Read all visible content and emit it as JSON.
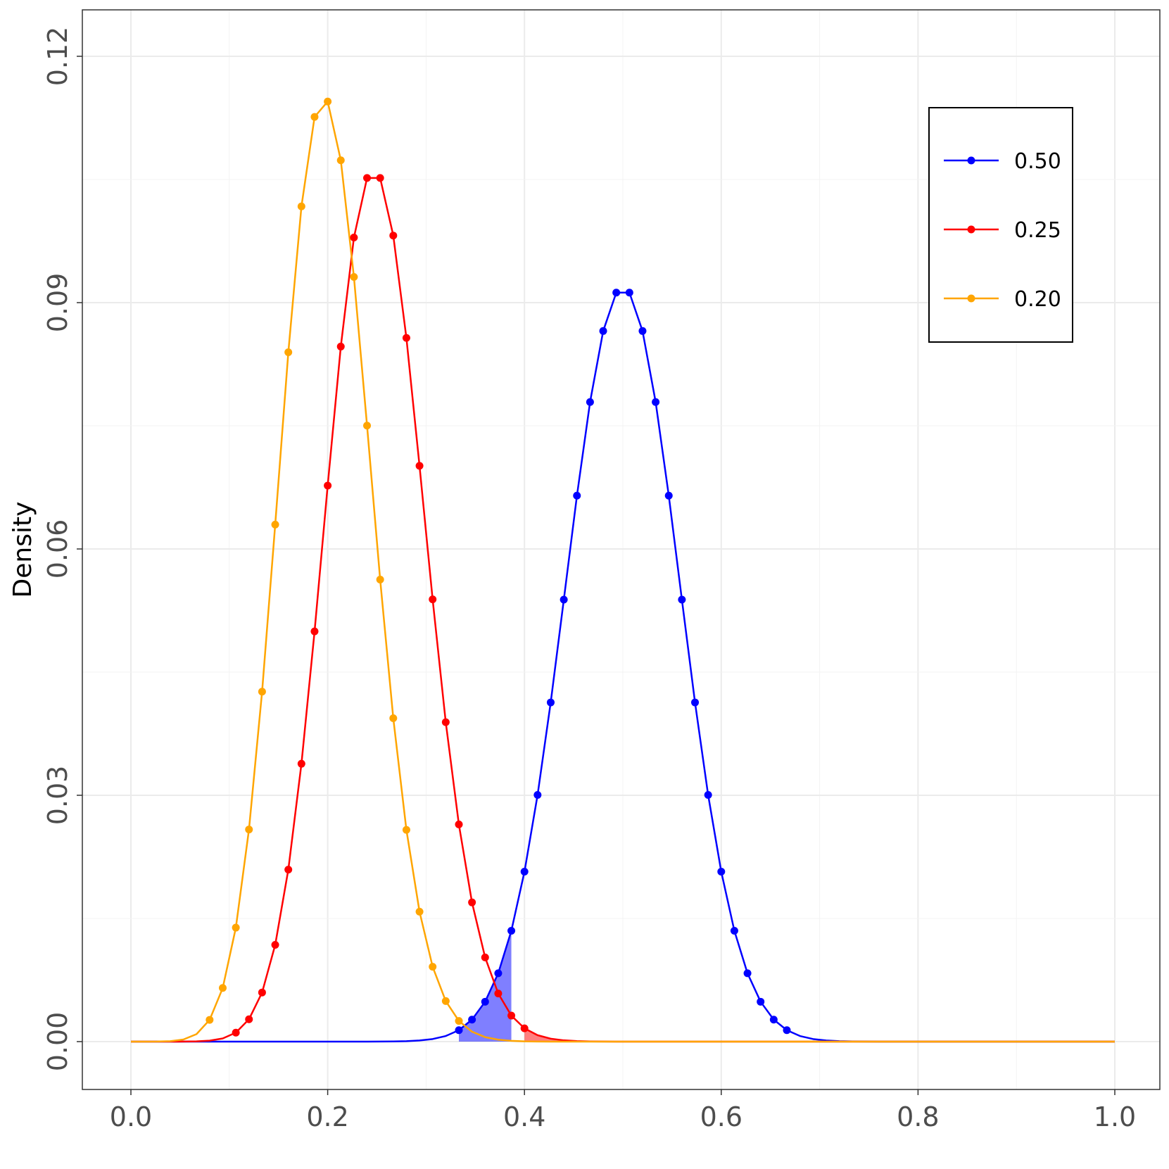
{
  "chart_data": {
    "type": "line",
    "title": "",
    "xlabel": "",
    "ylabel": "Density",
    "xlim": [
      0,
      1
    ],
    "ylim": [
      0,
      0.12
    ],
    "x_ticks": [
      0.0,
      0.2,
      0.4,
      0.6,
      0.8,
      1.0
    ],
    "x_tick_labels": [
      "0.0",
      "0.2",
      "0.4",
      "0.6",
      "0.8",
      "1.0"
    ],
    "y_ticks": [
      0.0,
      0.03,
      0.06,
      0.09,
      0.12
    ],
    "y_tick_labels": [
      "0.00",
      "0.03",
      "0.06",
      "0.09",
      "0.12"
    ],
    "grid": true,
    "legend_position": "top-right",
    "legend_frame": true,
    "series": [
      {
        "name": "0.50",
        "color": "#0000ff",
        "distribution": "binomial",
        "n": 75,
        "p": 0.5,
        "marker_range": [
          25,
          50
        ],
        "shaded_region": {
          "x_from": 0.333,
          "x_to": 0.387,
          "color": "#0000ff",
          "opacity": 0.5
        }
      },
      {
        "name": "0.25",
        "color": "#ff0000",
        "distribution": "binomial",
        "n": 75,
        "p": 0.25,
        "marker_range": [
          8,
          30
        ],
        "shaded_region": {
          "x_from": 0.4,
          "x_to": 1.0,
          "color": "#ff0000",
          "opacity": 0.5
        }
      },
      {
        "name": "0.20",
        "color": "#ffa500",
        "distribution": "binomial",
        "n": 75,
        "p": 0.2,
        "marker_range": [
          6,
          25
        ]
      }
    ]
  }
}
